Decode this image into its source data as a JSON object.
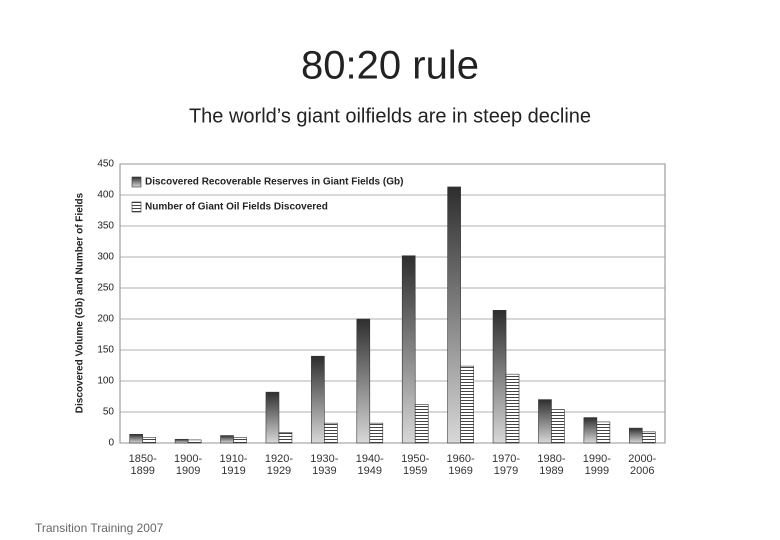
{
  "title": "80:20 rule",
  "subtitle": "The world’s giant oilfields are in steep decline",
  "footer": "Transition Training 2007",
  "chart_data": {
    "type": "bar",
    "y_label": "Discovered Volume (Gb) and Number of Fields",
    "categories": [
      "1850-1899",
      "1900-1909",
      "1910-1919",
      "1920-1929",
      "1930-1939",
      "1940-1949",
      "1950-1959",
      "1960-1969",
      "1970-1979",
      "1980-1989",
      "1990-1999",
      "2000-2006"
    ],
    "series": [
      {
        "name": "Discovered Recoverable Reserves in Giant Fields (Gb)",
        "color": "#2e2e2e",
        "values": [
          14,
          6,
          12,
          82,
          140,
          200,
          302,
          413,
          214,
          70,
          41,
          24
        ]
      },
      {
        "name": "Number of Giant Oil Fields Discovered",
        "color": "#ffffff",
        "values": [
          9,
          5,
          9,
          17,
          32,
          32,
          62,
          124,
          111,
          54,
          34,
          18
        ]
      }
    ],
    "ylim": [
      0,
      450
    ],
    "yticks": [
      0,
      50,
      100,
      150,
      200,
      250,
      300,
      350,
      400,
      450
    ],
    "grid": true,
    "legend": "top-left"
  }
}
